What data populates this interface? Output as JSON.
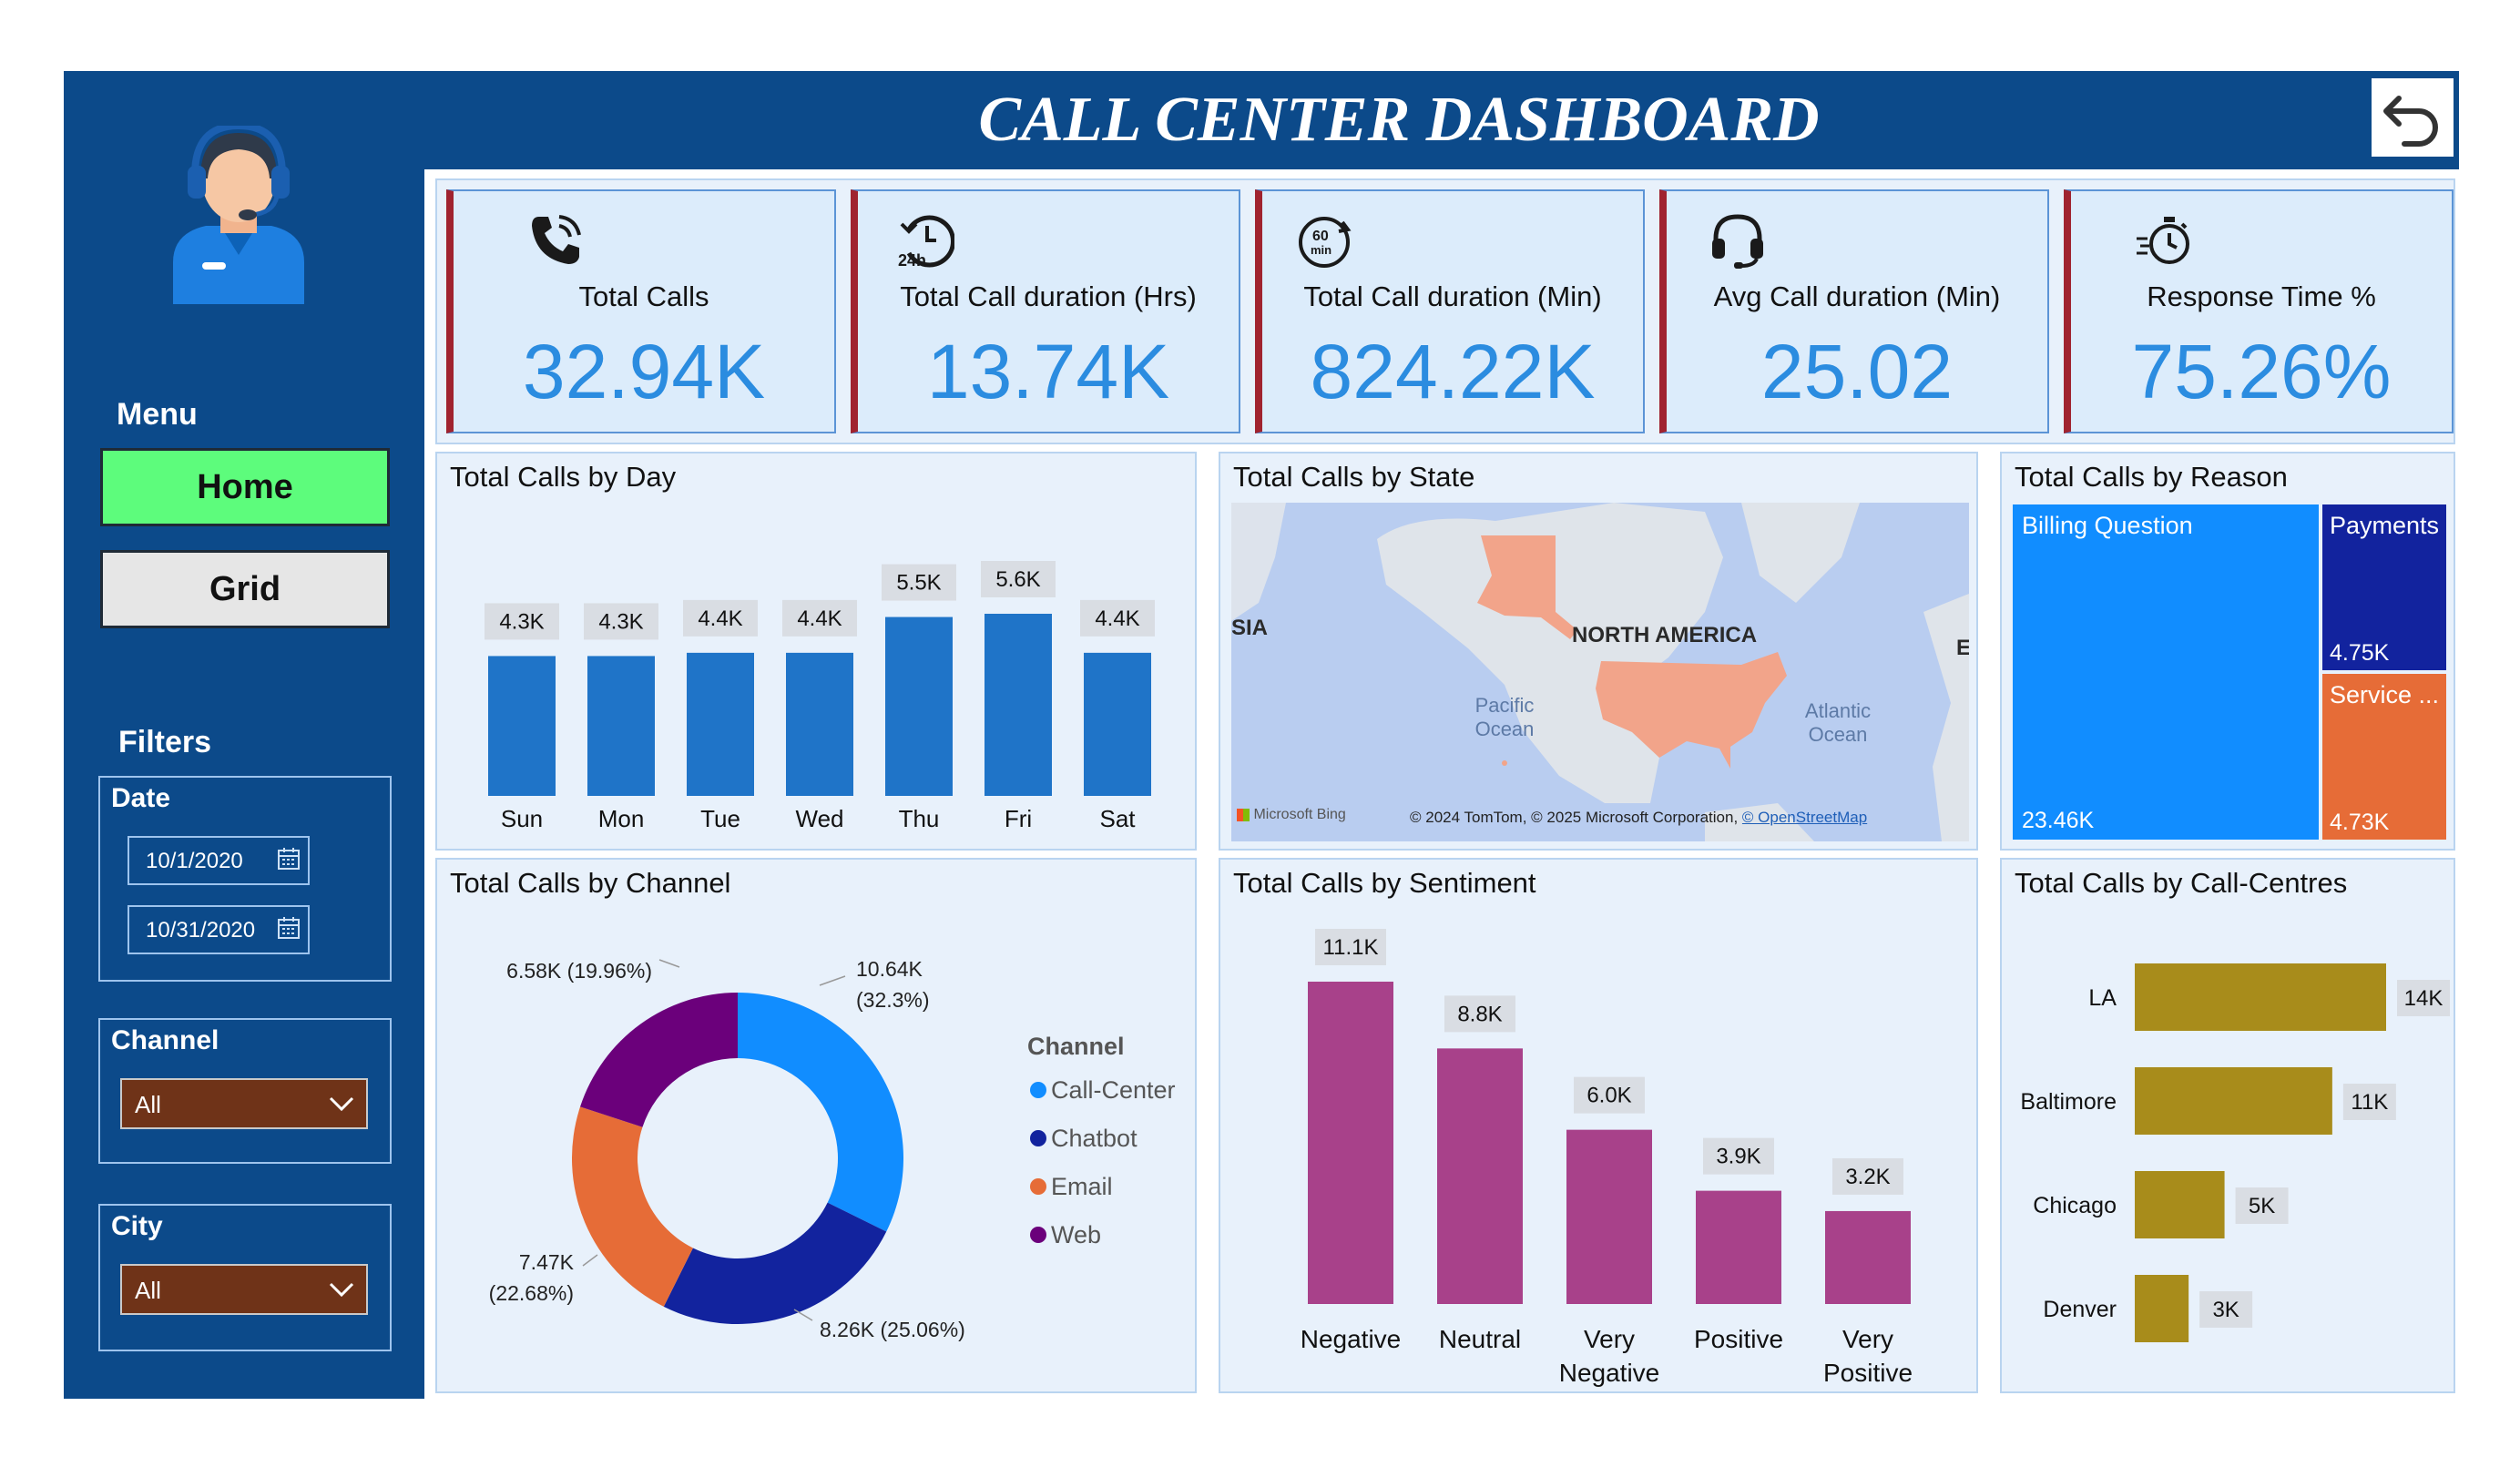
{
  "title": "CALL CENTER DASHBOARD",
  "sidebar": {
    "menu_heading": "Menu",
    "home_label": "Home",
    "grid_label": "Grid",
    "filters_heading": "Filters",
    "date_label": "Date",
    "date_from": "10/1/2020",
    "date_to": "10/31/2020",
    "channel_label": "Channel",
    "channel_value": "All",
    "city_label": "City",
    "city_value": "All"
  },
  "kpis": [
    {
      "label": "Total Calls",
      "value": "32.94K",
      "icon": "phone-ringing-icon"
    },
    {
      "label": "Total Call duration (Hrs)",
      "value": "13.74K",
      "icon": "24h-clock-icon"
    },
    {
      "label": "Total Call duration (Min)",
      "value": "824.22K",
      "icon": "60-min-timer-icon"
    },
    {
      "label": "Avg Call duration (Min)",
      "value": "25.02",
      "icon": "headset-icon"
    },
    {
      "label": "Response Time %",
      "value": "75.26%",
      "icon": "fast-stopwatch-icon"
    }
  ],
  "colors": {
    "navy": "#0c4a8a",
    "kpi_value": "#2b8ce0",
    "bar_blue": "#1f74c8",
    "sentiment": "#a8418a",
    "gold": "#a88c1b",
    "home_green": "#5dfc7c",
    "accent_red": "#a0232f"
  },
  "panels": {
    "day_title": "Total Calls by Day",
    "state_title": "Total Calls by State",
    "reason_title": "Total Calls by Reason",
    "channel_title": "Total Calls by Channel",
    "sentiment_title": "Total Calls by Sentiment",
    "centres_title": "Total Calls by Call-Centres"
  },
  "map": {
    "label_continent": "NORTH AMERICA",
    "label_asia": "SIA",
    "label_europe": "E",
    "label_pacific_1": "Pacific",
    "label_pacific_2": "Ocean",
    "label_atlantic_1": "Atlantic",
    "label_atlantic_2": "Ocean",
    "bing": "Microsoft Bing",
    "copyright": "© 2024 TomTom, © 2025 Microsoft Corporation,",
    "osm_link": "© OpenStreetMap"
  },
  "chart_data": [
    {
      "type": "bar",
      "title": "Total Calls by Day",
      "categories": [
        "Sun",
        "Mon",
        "Tue",
        "Wed",
        "Thu",
        "Fri",
        "Sat"
      ],
      "values": [
        4.3,
        4.3,
        4.4,
        4.4,
        5.5,
        5.6,
        4.4
      ],
      "labels": [
        "4.3K",
        "4.3K",
        "4.4K",
        "4.4K",
        "5.5K",
        "5.6K",
        "4.4K"
      ]
    },
    {
      "type": "treemap",
      "title": "Total Calls by Reason",
      "items": [
        {
          "name": "Billing Question",
          "label": "23.46K",
          "value": 23.46
        },
        {
          "name": "Payments",
          "label": "4.75K",
          "value": 4.75
        },
        {
          "name": "Service ...",
          "label": "4.73K",
          "value": 4.73
        }
      ]
    },
    {
      "type": "pie",
      "title": "Total Calls by Channel",
      "legend_title": "Channel",
      "slices": [
        {
          "name": "Call-Center",
          "value": 10.64,
          "label_1": "10.64K",
          "label_2": "(32.3%)",
          "color": "#118dff"
        },
        {
          "name": "Chatbot",
          "value": 8.26,
          "label_1": "8.26K (25.06%)",
          "label_2": "",
          "color": "#12239e"
        },
        {
          "name": "Email",
          "value": 7.47,
          "label_1": "7.47K",
          "label_2": "(22.68%)",
          "color": "#e66c37"
        },
        {
          "name": "Web",
          "value": 6.58,
          "label_1": "6.58K (19.96%)",
          "label_2": "",
          "color": "#6b007b"
        }
      ]
    },
    {
      "type": "bar",
      "title": "Total Calls by Sentiment",
      "categories": [
        [
          "Negative"
        ],
        [
          "Neutral"
        ],
        [
          "Very",
          "Negative"
        ],
        [
          "Positive"
        ],
        [
          "Very",
          "Positive"
        ]
      ],
      "values": [
        11.1,
        8.8,
        6.0,
        3.9,
        3.2
      ],
      "labels": [
        "11.1K",
        "8.8K",
        "6.0K",
        "3.9K",
        "3.2K"
      ]
    },
    {
      "type": "bar",
      "orientation": "horizontal",
      "title": "Total Calls by Call-Centres",
      "categories": [
        "LA",
        "Baltimore",
        "Chicago",
        "Denver"
      ],
      "values": [
        14,
        11,
        5,
        3
      ],
      "labels": [
        "14K",
        "11K",
        "5K",
        "3K"
      ]
    }
  ]
}
